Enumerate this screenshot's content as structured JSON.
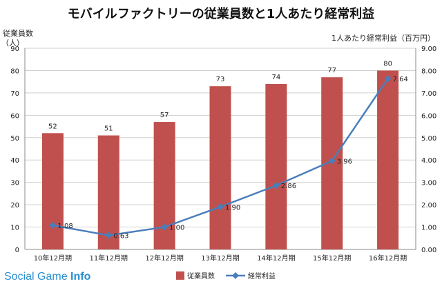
{
  "chart_data": {
    "type": "bar+line",
    "title": "モバイルファクトリーの従業員数と1人あたり経常利益",
    "categories": [
      "10年12月期",
      "11年12月期",
      "12年12月期",
      "13年12月期",
      "14年12月期",
      "15年12月期",
      "16年12月期"
    ],
    "series": [
      {
        "name": "従業員数",
        "type": "bar",
        "axis": "left",
        "values": [
          52,
          51,
          57,
          73,
          74,
          77,
          80
        ],
        "labels": [
          "52",
          "51",
          "57",
          "73",
          "74",
          "77",
          "80"
        ],
        "color": "#c0504d"
      },
      {
        "name": "経常利益",
        "type": "line",
        "axis": "right",
        "values": [
          1.08,
          0.63,
          1.0,
          1.9,
          2.86,
          3.96,
          7.64
        ],
        "labels": [
          "1.08",
          "0.63",
          "1.00",
          "1.90",
          "2.86",
          "3.96",
          "7.64"
        ],
        "color": "#4a7ebb"
      }
    ],
    "left_axis": {
      "label_line1": "従業員数",
      "label_line2": "（人）",
      "ylim": [
        0,
        90
      ],
      "ticks": [
        "0",
        "10",
        "20",
        "30",
        "40",
        "50",
        "60",
        "70",
        "80",
        "90"
      ]
    },
    "right_axis": {
      "label": "1人あたり経常利益（百万円）",
      "ylim": [
        0,
        9
      ],
      "ticks": [
        "0.00",
        "1.00",
        "2.00",
        "3.00",
        "4.00",
        "5.00",
        "6.00",
        "7.00",
        "8.00",
        "9.00"
      ]
    },
    "grid": true,
    "legend_position": "bottom"
  },
  "watermark": {
    "part1": "Social Game ",
    "part2": "Info"
  }
}
